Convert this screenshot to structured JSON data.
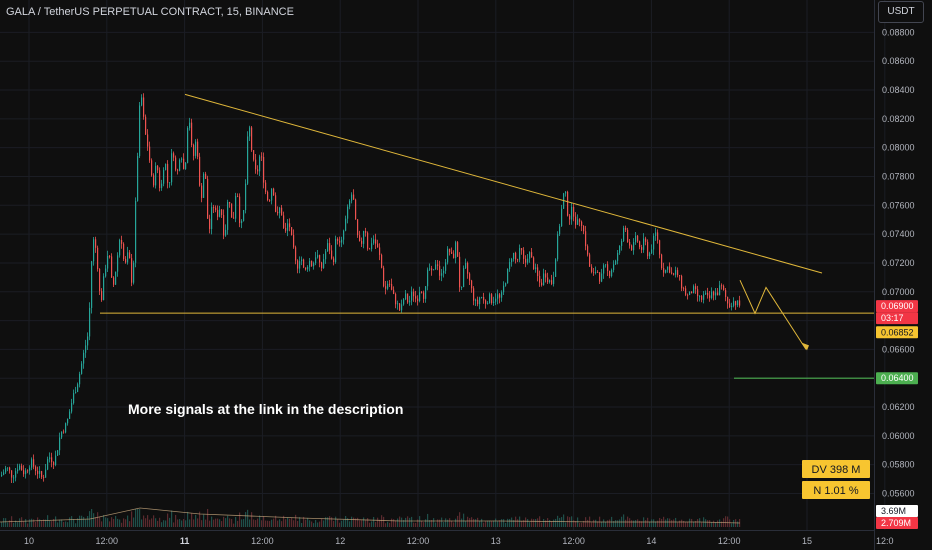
{
  "header": {
    "title": "GALA / TetherUS PERPETUAL CONTRACT, 15, BINANCE",
    "currency": "USDT"
  },
  "annotation": "More signals at the link in the description",
  "colors": {
    "up": "#26a69a",
    "down": "#ef5350",
    "trendline": "#e0b73a",
    "target": "#4caf50",
    "price_tag": "#f23645",
    "level_tag": "#f7c530"
  },
  "chart_data": {
    "type": "candlestick",
    "interval": "15",
    "ylim": [
      0.0552,
      0.089
    ],
    "y_ticks": [
      "0.08800",
      "0.08600",
      "0.08400",
      "0.08200",
      "0.08000",
      "0.07800",
      "0.07600",
      "0.07400",
      "0.07200",
      "0.07000",
      "0.06800",
      "0.06600",
      "0.06400",
      "0.06200",
      "0.06000",
      "0.05800",
      "0.05600"
    ],
    "x_ticks": [
      {
        "label": "10",
        "bold": false
      },
      {
        "label": "12:00",
        "bold": false
      },
      {
        "label": "11",
        "bold": true
      },
      {
        "label": "12:00",
        "bold": false
      },
      {
        "label": "12",
        "bold": false
      },
      {
        "label": "12:00",
        "bold": false
      },
      {
        "label": "13",
        "bold": false
      },
      {
        "label": "12:00",
        "bold": false
      },
      {
        "label": "14",
        "bold": false
      },
      {
        "label": "12:00",
        "bold": false
      },
      {
        "label": "15",
        "bold": false
      },
      {
        "label": "12:0",
        "bold": false
      }
    ],
    "price_path": [
      [
        0,
        0.0572
      ],
      [
        6,
        0.0578
      ],
      [
        12,
        0.0572
      ],
      [
        18,
        0.058
      ],
      [
        24,
        0.0574
      ],
      [
        30,
        0.0582
      ],
      [
        36,
        0.0576
      ],
      [
        42,
        0.057
      ],
      [
        48,
        0.0586
      ],
      [
        54,
        0.0582
      ],
      [
        60,
        0.0602
      ],
      [
        66,
        0.0608
      ],
      [
        72,
        0.0626
      ],
      [
        78,
        0.064
      ],
      [
        84,
        0.066
      ],
      [
        88,
        0.0672
      ],
      [
        92,
        0.0738
      ],
      [
        96,
        0.0728
      ],
      [
        100,
        0.069
      ],
      [
        104,
        0.0714
      ],
      [
        108,
        0.073
      ],
      [
        112,
        0.07
      ],
      [
        116,
        0.072
      ],
      [
        120,
        0.0742
      ],
      [
        124,
        0.0716
      ],
      [
        128,
        0.0728
      ],
      [
        132,
        0.0702
      ],
      [
        136,
        0.078
      ],
      [
        140,
        0.0842
      ],
      [
        144,
        0.0812
      ],
      [
        148,
        0.0798
      ],
      [
        152,
        0.0772
      ],
      [
        156,
        0.079
      ],
      [
        160,
        0.0768
      ],
      [
        164,
        0.0794
      ],
      [
        168,
        0.077
      ],
      [
        172,
        0.0802
      ],
      [
        176,
        0.0778
      ],
      [
        180,
        0.08
      ],
      [
        184,
        0.078
      ],
      [
        188,
        0.0828
      ],
      [
        192,
        0.079
      ],
      [
        196,
        0.0808
      ],
      [
        200,
        0.076
      ],
      [
        204,
        0.079
      ],
      [
        208,
        0.0738
      ],
      [
        212,
        0.0762
      ],
      [
        216,
        0.0752
      ],
      [
        220,
        0.076
      ],
      [
        224,
        0.0736
      ],
      [
        228,
        0.077
      ],
      [
        232,
        0.0744
      ],
      [
        236,
        0.0776
      ],
      [
        240,
        0.0742
      ],
      [
        244,
        0.076
      ],
      [
        248,
        0.082
      ],
      [
        252,
        0.0792
      ],
      [
        256,
        0.078
      ],
      [
        260,
        0.0798
      ],
      [
        264,
        0.0772
      ],
      [
        268,
        0.0762
      ],
      [
        272,
        0.0776
      ],
      [
        276,
        0.075
      ],
      [
        280,
        0.076
      ],
      [
        284,
        0.0738
      ],
      [
        288,
        0.075
      ],
      [
        292,
        0.0732
      ],
      [
        296,
        0.0716
      ],
      [
        300,
        0.0726
      ],
      [
        304,
        0.0712
      ],
      [
        308,
        0.0722
      ],
      [
        312,
        0.0718
      ],
      [
        316,
        0.0728
      ],
      [
        320,
        0.0714
      ],
      [
        324,
        0.0726
      ],
      [
        328,
        0.0734
      ],
      [
        332,
        0.0718
      ],
      [
        336,
        0.074
      ],
      [
        340,
        0.073
      ],
      [
        344,
        0.0746
      ],
      [
        348,
        0.076
      ],
      [
        352,
        0.077
      ],
      [
        356,
        0.074
      ],
      [
        360,
        0.073
      ],
      [
        364,
        0.0748
      ],
      [
        368,
        0.0726
      ],
      [
        372,
        0.0738
      ],
      [
        376,
        0.0732
      ],
      [
        380,
        0.0722
      ],
      [
        384,
        0.07
      ],
      [
        388,
        0.0708
      ],
      [
        392,
        0.0698
      ],
      [
        396,
        0.0692
      ],
      [
        400,
        0.0686
      ],
      [
        404,
        0.0698
      ],
      [
        408,
        0.0692
      ],
      [
        412,
        0.07
      ],
      [
        416,
        0.0694
      ],
      [
        420,
        0.0704
      ],
      [
        424,
        0.0696
      ],
      [
        428,
        0.0718
      ],
      [
        432,
        0.071
      ],
      [
        436,
        0.0724
      ],
      [
        440,
        0.0708
      ],
      [
        444,
        0.072
      ],
      [
        448,
        0.073
      ],
      [
        452,
        0.0722
      ],
      [
        456,
        0.0736
      ],
      [
        460,
        0.0694
      ],
      [
        464,
        0.072
      ],
      [
        468,
        0.071
      ],
      [
        472,
        0.0698
      ],
      [
        476,
        0.069
      ],
      [
        480,
        0.0698
      ],
      [
        484,
        0.0692
      ],
      [
        488,
        0.0696
      ],
      [
        492,
        0.0694
      ],
      [
        496,
        0.0698
      ],
      [
        500,
        0.0694
      ],
      [
        504,
        0.0706
      ],
      [
        508,
        0.0716
      ],
      [
        512,
        0.0728
      ],
      [
        516,
        0.072
      ],
      [
        520,
        0.073
      ],
      [
        524,
        0.0718
      ],
      [
        528,
        0.0728
      ],
      [
        532,
        0.072
      ],
      [
        536,
        0.0712
      ],
      [
        540,
        0.0704
      ],
      [
        544,
        0.0714
      ],
      [
        548,
        0.0708
      ],
      [
        552,
        0.0706
      ],
      [
        556,
        0.0732
      ],
      [
        560,
        0.0752
      ],
      [
        564,
        0.0772
      ],
      [
        568,
        0.075
      ],
      [
        572,
        0.0758
      ],
      [
        576,
        0.0746
      ],
      [
        580,
        0.0752
      ],
      [
        584,
        0.0738
      ],
      [
        588,
        0.072
      ],
      [
        592,
        0.071
      ],
      [
        596,
        0.0716
      ],
      [
        600,
        0.0708
      ],
      [
        604,
        0.0718
      ],
      [
        608,
        0.0712
      ],
      [
        612,
        0.0718
      ],
      [
        616,
        0.0724
      ],
      [
        620,
        0.0732
      ],
      [
        624,
        0.0746
      ],
      [
        628,
        0.0734
      ],
      [
        632,
        0.073
      ],
      [
        636,
        0.0738
      ],
      [
        640,
        0.0728
      ],
      [
        644,
        0.0736
      ],
      [
        648,
        0.0724
      ],
      [
        652,
        0.0734
      ],
      [
        656,
        0.0742
      ],
      [
        660,
        0.072
      ],
      [
        664,
        0.0714
      ],
      [
        668,
        0.0718
      ],
      [
        672,
        0.071
      ],
      [
        676,
        0.0714
      ],
      [
        680,
        0.0706
      ],
      [
        684,
        0.07
      ],
      [
        688,
        0.0696
      ],
      [
        692,
        0.0702
      ],
      [
        696,
        0.0698
      ],
      [
        700,
        0.0694
      ],
      [
        704,
        0.0698
      ],
      [
        708,
        0.0694
      ],
      [
        712,
        0.07
      ],
      [
        716,
        0.0698
      ],
      [
        720,
        0.0704
      ],
      [
        724,
        0.0698
      ],
      [
        728,
        0.069
      ],
      [
        732,
        0.0694
      ],
      [
        736,
        0.0692
      ],
      [
        740,
        0.069
      ]
    ],
    "trendline_upper": [
      [
        185,
        0.0837
      ],
      [
        822,
        0.0713
      ]
    ],
    "support_line": {
      "value": 0.06852,
      "x0": 100
    },
    "target_line": {
      "value": 0.064,
      "x0": 734
    },
    "projection": [
      [
        740,
        0.0708
      ],
      [
        755,
        0.0685
      ],
      [
        766,
        0.0703
      ],
      [
        806,
        0.066
      ]
    ],
    "price_tags": [
      {
        "label": "0.06900",
        "value": 0.069,
        "bg": "#f23645",
        "fg": "#ffffff"
      },
      {
        "label": "03:17",
        "value": 0.069,
        "bg": "#f23645",
        "fg": "#ffffff",
        "offset": 1
      },
      {
        "label": "0.06852",
        "value": 0.06852,
        "bg": "#f7c530",
        "fg": "#131722",
        "offset": 1.6
      },
      {
        "label": "0.06400",
        "value": 0.064,
        "bg": "#4caf50",
        "fg": "#ffffff"
      }
    ],
    "badges": [
      "DV 398 M",
      "N 1.01 %"
    ],
    "volume_tags": [
      {
        "label": "3.69M",
        "bg": "#ffffff",
        "fg": "#131722"
      },
      {
        "label": "2.709M",
        "bg": "#f23645",
        "fg": "#ffffff"
      }
    ]
  }
}
